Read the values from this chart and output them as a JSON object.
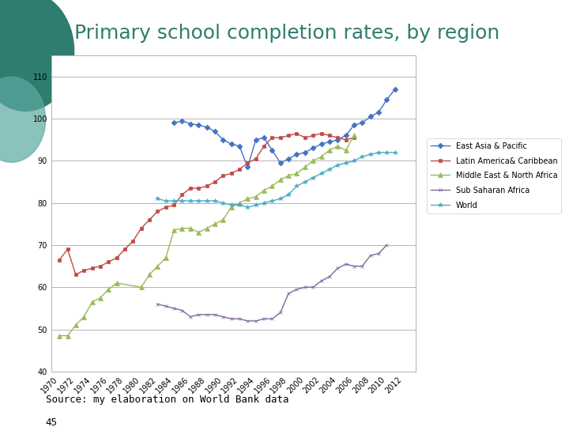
{
  "title": "Primary school completion rates, by region",
  "source": "Source: my elaboration on World Bank data",
  "page": "45",
  "background_color": "#ffffff",
  "title_color": "#2E7D6E",
  "title_fontsize": 18,
  "years": [
    1970,
    1971,
    1972,
    1973,
    1974,
    1975,
    1976,
    1977,
    1978,
    1979,
    1980,
    1981,
    1982,
    1983,
    1984,
    1985,
    1986,
    1987,
    1988,
    1989,
    1990,
    1991,
    1992,
    1993,
    1994,
    1995,
    1996,
    1997,
    1998,
    1999,
    2000,
    2001,
    2002,
    2003,
    2004,
    2005,
    2006,
    2007,
    2008,
    2009,
    2010,
    2011,
    2012
  ],
  "east_asia": [
    null,
    null,
    null,
    null,
    null,
    null,
    null,
    null,
    null,
    null,
    null,
    null,
    null,
    null,
    99.0,
    99.5,
    98.8,
    98.5,
    98.0,
    97.0,
    95.0,
    94.0,
    93.5,
    88.5,
    95.0,
    95.5,
    92.5,
    89.5,
    90.5,
    91.5,
    92.0,
    93.0,
    94.0,
    94.5,
    95.0,
    96.0,
    98.5,
    99.0,
    100.5,
    101.5,
    104.5,
    107.0,
    null
  ],
  "latin_america": [
    66.5,
    69.0,
    63.0,
    64.0,
    64.5,
    65.0,
    66.0,
    67.0,
    69.0,
    71.0,
    74.0,
    76.0,
    78.0,
    79.0,
    79.5,
    82.0,
    83.5,
    83.5,
    84.0,
    85.0,
    86.5,
    87.0,
    88.0,
    89.5,
    90.5,
    93.5,
    95.5,
    95.5,
    96.0,
    96.5,
    95.5,
    96.0,
    96.5,
    96.0,
    95.5,
    95.0,
    95.5,
    null,
    null,
    null,
    null,
    null,
    null
  ],
  "middle_east": [
    48.5,
    48.5,
    51.0,
    53.0,
    56.5,
    57.5,
    59.5,
    61.0,
    null,
    null,
    60.0,
    63.0,
    65.0,
    67.0,
    73.5,
    74.0,
    74.0,
    73.0,
    74.0,
    75.0,
    76.0,
    79.0,
    80.0,
    81.0,
    81.5,
    83.0,
    84.0,
    85.5,
    86.5,
    87.0,
    88.5,
    90.0,
    91.0,
    92.5,
    93.5,
    92.5,
    96.0,
    null,
    null,
    null,
    null,
    null,
    null
  ],
  "sub_saharan": [
    null,
    null,
    null,
    null,
    null,
    null,
    null,
    null,
    null,
    null,
    null,
    null,
    56.0,
    55.5,
    55.0,
    54.5,
    53.0,
    53.5,
    53.5,
    53.5,
    53.0,
    52.5,
    52.5,
    52.0,
    52.0,
    52.5,
    52.5,
    54.0,
    58.5,
    59.5,
    60.0,
    60.0,
    61.5,
    62.5,
    64.5,
    65.5,
    65.0,
    65.0,
    67.5,
    68.0,
    70.0,
    null,
    null
  ],
  "world": [
    null,
    null,
    null,
    null,
    null,
    null,
    null,
    null,
    null,
    null,
    null,
    null,
    81.0,
    80.5,
    80.5,
    80.5,
    80.5,
    80.5,
    80.5,
    80.5,
    80.0,
    79.5,
    79.5,
    79.0,
    79.5,
    80.0,
    80.5,
    81.0,
    82.0,
    84.0,
    85.0,
    86.0,
    87.0,
    88.0,
    89.0,
    89.5,
    90.0,
    91.0,
    91.5,
    92.0,
    92.0,
    92.0,
    null
  ],
  "east_asia_color": "#4472C4",
  "latin_america_color": "#BE4B48",
  "middle_east_color": "#9BBB59",
  "sub_saharan_color": "#8064A2",
  "world_color": "#4BACC6",
  "ylim": [
    40,
    115
  ],
  "yticks": [
    40,
    50,
    60,
    70,
    80,
    90,
    100,
    110
  ],
  "grid_color": "#AAAAAA",
  "axis_label_fontsize": 7,
  "legend_fontsize": 7,
  "deco_color": "#2E7D6E",
  "deco_color2": "#5BA8A0"
}
